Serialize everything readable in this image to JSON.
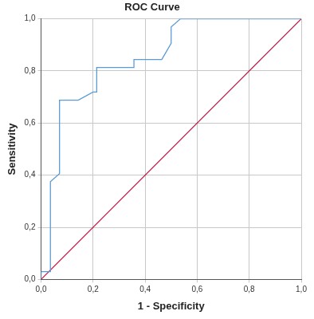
{
  "chart_data": {
    "type": "line",
    "title": "ROC Curve",
    "x_label": "1 - Specificity",
    "y_label": "Sensitivity",
    "xlim": [
      0,
      1
    ],
    "ylim": [
      0,
      1
    ],
    "xticks": [
      {
        "value": 0,
        "label": "0,0"
      },
      {
        "value": 0.2,
        "label": "0,2"
      },
      {
        "value": 0.4,
        "label": "0,4"
      },
      {
        "value": 0.6,
        "label": "0,6"
      },
      {
        "value": 0.8,
        "label": "0,8"
      },
      {
        "value": 1,
        "label": "1,0"
      }
    ],
    "yticks": [
      {
        "value": 0,
        "label": "0,0"
      },
      {
        "value": 0.2,
        "label": "0,2"
      },
      {
        "value": 0.4,
        "label": "0,4"
      },
      {
        "value": 0.6,
        "label": "0,6"
      },
      {
        "value": 0.8,
        "label": "0,8"
      },
      {
        "value": 1,
        "label": "1,0"
      }
    ],
    "grid": true,
    "series": [
      {
        "color": "#5b9bd5",
        "x": [
          0,
          0,
          0.036,
          0.036,
          0.071,
          0.071,
          0.143,
          0.2,
          0.214,
          0.214,
          0.357,
          0.357,
          0.464,
          0.5,
          0.5,
          0.536,
          1
        ],
        "values": [
          0,
          0.03,
          0.03,
          0.375,
          0.406,
          0.688,
          0.688,
          0.719,
          0.719,
          0.813,
          0.813,
          0.844,
          0.844,
          0.906,
          0.969,
          1,
          1
        ]
      },
      {
        "color": "#c0143c",
        "x": [
          0,
          1
        ],
        "values": [
          0,
          1
        ]
      }
    ]
  }
}
